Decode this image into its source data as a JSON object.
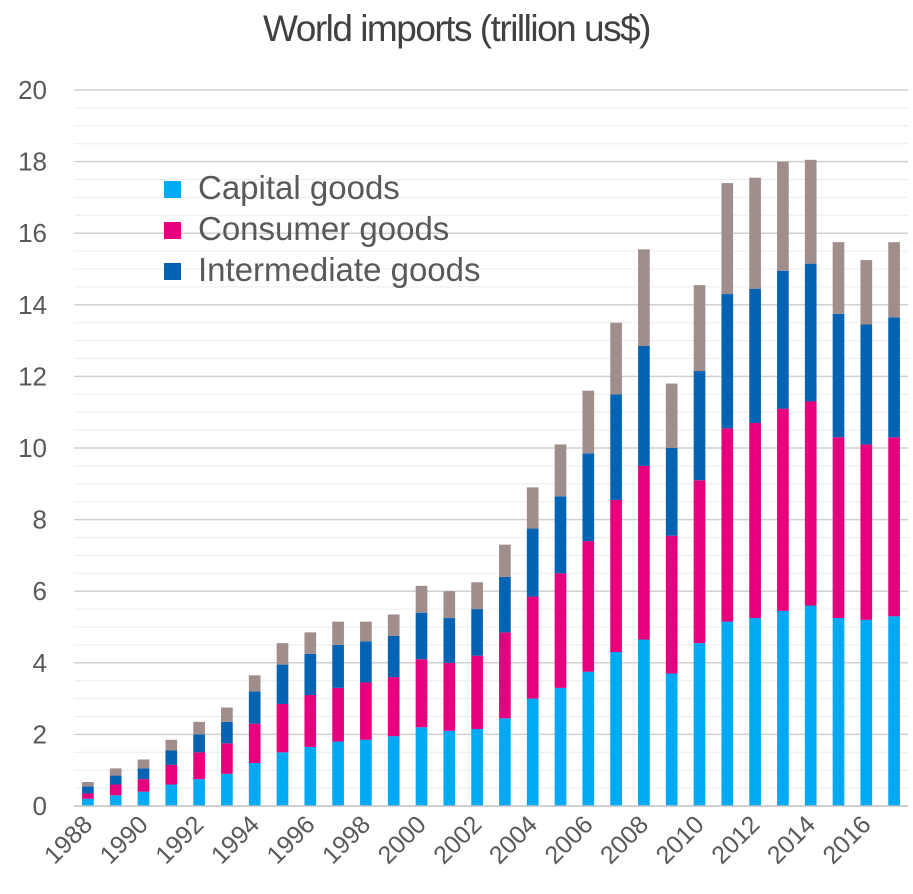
{
  "chart_data": {
    "type": "bar",
    "stacked": true,
    "title": "World imports (trillion us$)",
    "xlabel": "",
    "ylabel": "",
    "ylim": [
      0,
      20
    ],
    "yticks": [
      0,
      2,
      4,
      6,
      8,
      10,
      12,
      14,
      16,
      18,
      20
    ],
    "grid": true,
    "legend_position": "top-left",
    "categories": [
      "1988",
      "1989",
      "1990",
      "1991",
      "1992",
      "1993",
      "1994",
      "1995",
      "1996",
      "1997",
      "1998",
      "1999",
      "2000",
      "2001",
      "2002",
      "2003",
      "2004",
      "2005",
      "2006",
      "2007",
      "2008",
      "2009",
      "2010",
      "2011",
      "2012",
      "2013",
      "2014",
      "2015",
      "2016",
      "2017"
    ],
    "x_tick_labels": [
      "1988",
      "1990",
      "1992",
      "1994",
      "1996",
      "1998",
      "2000",
      "2002",
      "2004",
      "2006",
      "2008",
      "2010",
      "2012",
      "2014",
      "2016"
    ],
    "series": [
      {
        "name": "Capital goods",
        "color": "#00a9f4",
        "in_legend": true,
        "values": [
          0.2,
          0.3,
          0.4,
          0.6,
          0.75,
          0.9,
          1.2,
          1.5,
          1.65,
          1.8,
          1.85,
          1.95,
          2.2,
          2.1,
          2.15,
          2.45,
          3.0,
          3.3,
          3.75,
          4.3,
          4.65,
          3.7,
          4.55,
          5.15,
          5.25,
          5.45,
          5.6,
          5.25,
          5.2,
          5.3
        ]
      },
      {
        "name": "Consumer goods",
        "color": "#e6007e",
        "in_legend": true,
        "values": [
          0.15,
          0.3,
          0.35,
          0.55,
          0.75,
          0.85,
          1.1,
          1.35,
          1.45,
          1.5,
          1.6,
          1.65,
          1.9,
          1.9,
          2.05,
          2.4,
          2.85,
          3.2,
          3.65,
          4.25,
          4.85,
          3.85,
          4.55,
          5.4,
          5.45,
          5.65,
          5.7,
          5.05,
          4.9,
          5.0
        ]
      },
      {
        "name": "Intermediate goods",
        "color": "#0563b4",
        "in_legend": true,
        "values": [
          0.2,
          0.25,
          0.3,
          0.4,
          0.5,
          0.6,
          0.9,
          1.1,
          1.15,
          1.2,
          1.15,
          1.15,
          1.3,
          1.25,
          1.3,
          1.55,
          1.9,
          2.15,
          2.45,
          2.95,
          3.35,
          2.45,
          3.05,
          3.75,
          3.75,
          3.85,
          3.85,
          3.45,
          3.35,
          3.35
        ]
      },
      {
        "color": "#a08e8c",
        "in_legend": false,
        "values": [
          0.12,
          0.2,
          0.25,
          0.3,
          0.35,
          0.4,
          0.45,
          0.6,
          0.6,
          0.65,
          0.55,
          0.6,
          0.75,
          0.75,
          0.75,
          0.9,
          1.15,
          1.45,
          1.75,
          2.0,
          2.7,
          1.8,
          2.4,
          3.1,
          3.1,
          3.05,
          2.9,
          2.0,
          1.8,
          2.1
        ]
      }
    ]
  }
}
